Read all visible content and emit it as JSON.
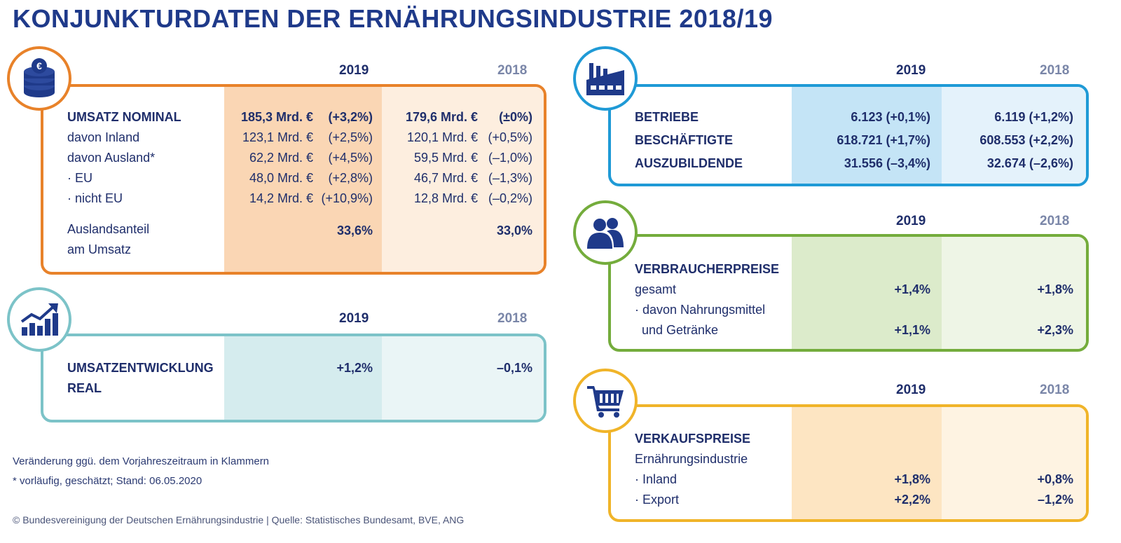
{
  "title": "KONJUNKTURDATEN DER ERNÄHRUNGSINDUSTRIE 2018/19",
  "colors": {
    "orange": "#e8822a",
    "teal": "#7cc3c8",
    "blue": "#1f9ad6",
    "green": "#74ac3c",
    "yellow": "#f0b429",
    "navy": "#1f2e6b"
  },
  "umsatz": {
    "icon": "coins-euro-icon",
    "year_current": "2019",
    "year_previous": "2018",
    "rows": [
      {
        "label": "UMSATZ NOMINAL",
        "v2019": "185,3 Mrd. €",
        "c2019": "(+3,2%)",
        "v2018": "179,6 Mrd. €",
        "c2018": "(±0%)"
      },
      {
        "label": "davon Inland",
        "v2019": "123,1 Mrd. €",
        "c2019": "(+2,5%)",
        "v2018": "120,1 Mrd. €",
        "c2018": "(+0,5%)"
      },
      {
        "label": "davon Ausland*",
        "v2019": "62,2 Mrd. €",
        "c2019": "(+4,5%)",
        "v2018": "59,5 Mrd. €",
        "c2018": "(–1,0%)"
      },
      {
        "label": "· EU",
        "v2019": "48,0 Mrd. €",
        "c2019": "(+2,8%)",
        "v2018": "46,7 Mrd. €",
        "c2018": "(–1,3%)"
      },
      {
        "label": "· nicht EU",
        "v2019": "14,2 Mrd. €",
        "c2019": "(+10,9%)",
        "v2018": "12,8 Mrd. €",
        "c2018": "(–0,2%)"
      }
    ],
    "auslandsanteil_label_1": "Auslandsanteil",
    "auslandsanteil_label_2": "am Umsatz",
    "auslandsanteil_2019": "33,6%",
    "auslandsanteil_2018": "33,0%"
  },
  "real": {
    "icon": "growth-chart-icon",
    "year_current": "2019",
    "year_previous": "2018",
    "label_1": "UMSATZENTWICKLUNG",
    "label_2": "REAL",
    "v2019": "+1,2%",
    "v2018": "–0,1%"
  },
  "betriebe": {
    "icon": "factory-icon",
    "year_current": "2019",
    "year_previous": "2018",
    "rows": [
      {
        "label": "BETRIEBE",
        "v2019": "6.123 (+0,1%)",
        "v2018": "6.119 (+1,2%)"
      },
      {
        "label": "BESCHÄFTIGTE",
        "v2019": "618.721 (+1,7%)",
        "v2018": "608.553 (+2,2%)"
      },
      {
        "label": "AUSZUBILDENDE",
        "v2019": "31.556 (–3,4%)",
        "v2018": "32.674 (–2,6%)"
      }
    ]
  },
  "verbraucher": {
    "icon": "people-icon",
    "year_current": "2019",
    "year_previous": "2018",
    "heading": "VERBRAUCHERPREISE",
    "row1_label": "gesamt",
    "row1_2019": "+1,4%",
    "row1_2018": "+1,8%",
    "row2_label_1": "· davon Nahrungsmittel",
    "row2_label_2": "und Getränke",
    "row2_2019": "+1,1%",
    "row2_2018": "+2,3%"
  },
  "verkauf": {
    "icon": "shopping-cart-icon",
    "year_current": "2019",
    "year_previous": "2018",
    "heading": "VERKAUFSPREISE",
    "sub": "Ernährungsindustrie",
    "rows": [
      {
        "label": "· Inland",
        "v2019": "+1,8%",
        "v2018": "+0,8%"
      },
      {
        "label": "· Export",
        "v2019": "+2,2%",
        "v2018": "–1,2%"
      }
    ]
  },
  "notes": {
    "line1": "Veränderung ggü. dem Vorjahreszeitraum in Klammern",
    "line2": "* vorläufig, geschätzt; Stand: 06.05.2020",
    "footer": "© Bundesvereinigung der Deutschen Ernährungsindustrie | Quelle: Statistisches Bundesamt, BVE, ANG"
  }
}
